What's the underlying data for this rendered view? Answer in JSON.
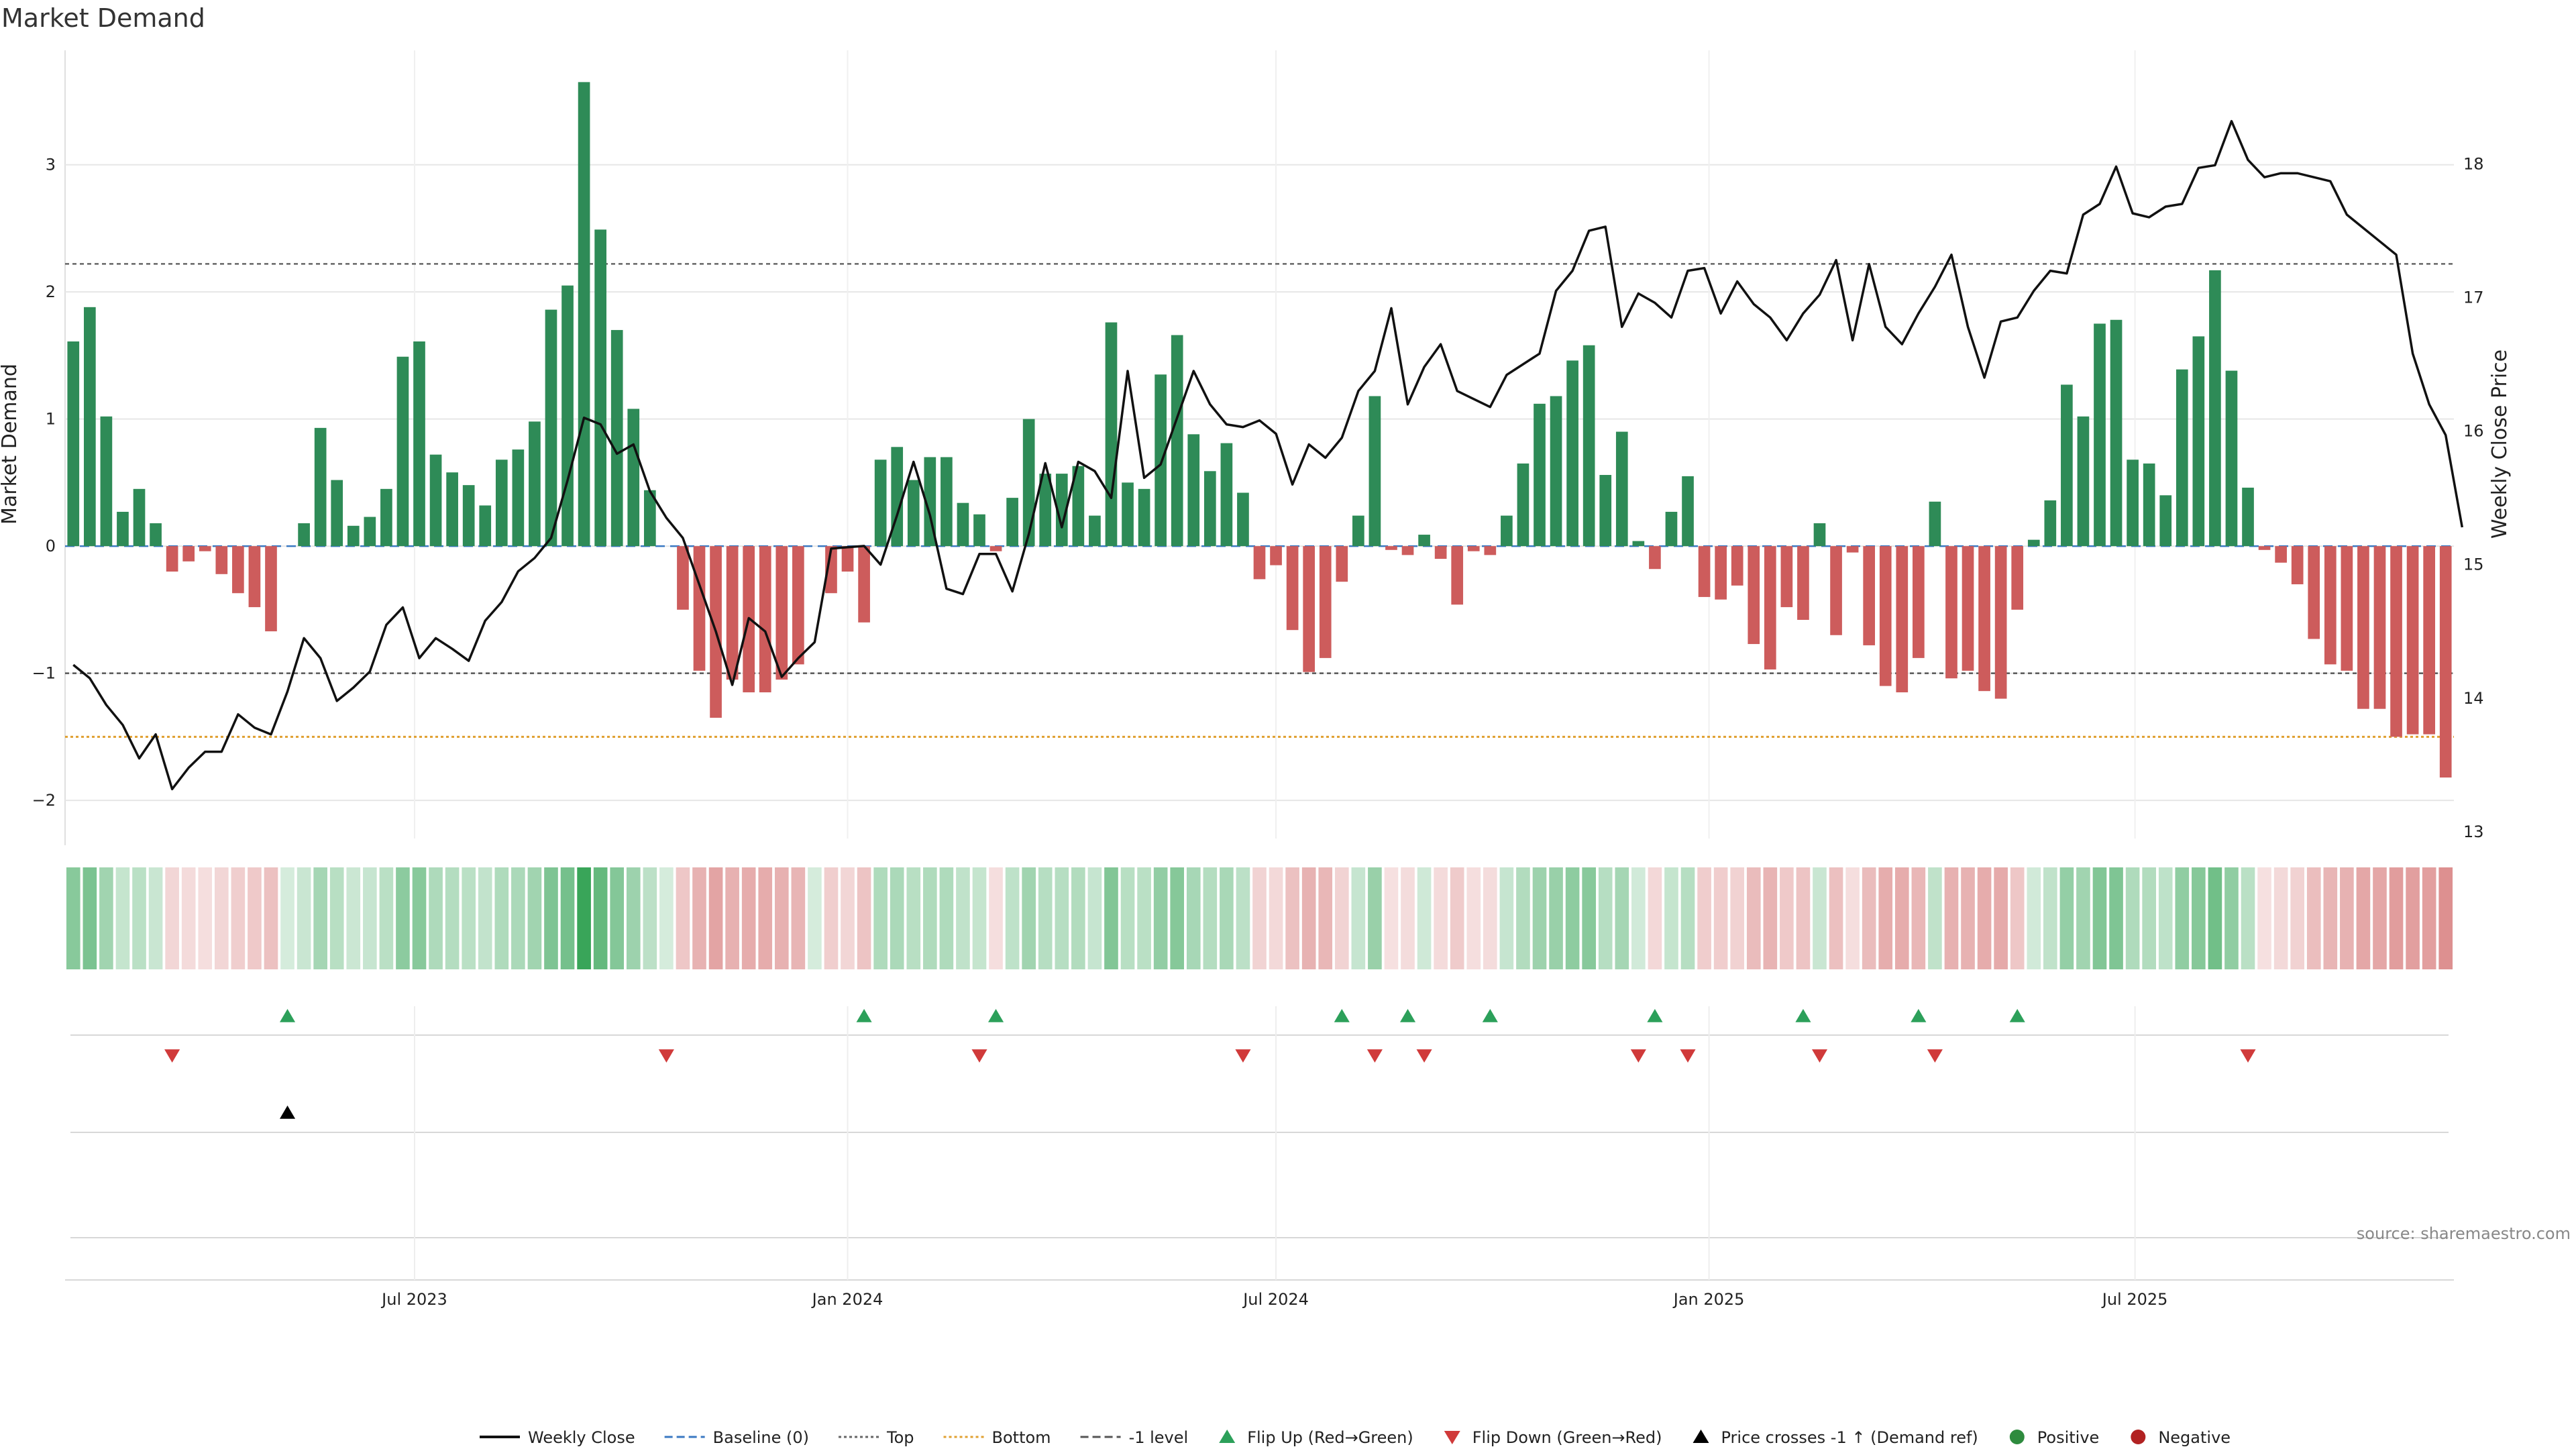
{
  "chart_data": {
    "type": "bar",
    "title": "Market Demand",
    "ylabel": "Market Demand",
    "y2label": "Weekly Close Price",
    "ylim": [
      -2.3,
      3.9
    ],
    "y2lim": [
      12.95,
      18.85
    ],
    "yticks": [
      -2,
      -1,
      0,
      1,
      2,
      3
    ],
    "y2ticks": [
      13,
      14,
      15,
      16,
      17,
      18
    ],
    "x_start": "2023-02-06",
    "x_interval_days": 7,
    "x_ticks": [
      {
        "label": "Jul 2023",
        "date": "2023-07-01"
      },
      {
        "label": "Jan 2024",
        "date": "2024-01-01"
      },
      {
        "label": "Jul 2024",
        "date": "2024-07-01"
      },
      {
        "label": "Jan 2025",
        "date": "2025-01-01"
      },
      {
        "label": "Jul 2025",
        "date": "2025-07-01"
      }
    ],
    "reference_lines": {
      "top": 2.22,
      "bottom": -1.5,
      "minus_one": -1,
      "baseline": 0
    },
    "series": [
      {
        "name": "Market Demand",
        "values": [
          1.61,
          1.88,
          1.02,
          0.27,
          0.45,
          0.18,
          -0.2,
          -0.12,
          -0.04,
          -0.22,
          -0.37,
          -0.48,
          -0.67,
          0.0,
          0.18,
          0.93,
          0.52,
          0.16,
          0.23,
          0.45,
          1.49,
          1.61,
          0.72,
          0.58,
          0.48,
          0.32,
          0.68,
          0.76,
          0.98,
          1.86,
          2.05,
          3.65,
          2.49,
          1.7,
          1.08,
          0.44,
          0.0,
          -0.5,
          -0.98,
          -1.35,
          -1.05,
          -1.15,
          -1.15,
          -1.05,
          -0.93,
          0.0,
          -0.37,
          -0.2,
          -0.6,
          0.68,
          0.78,
          0.52,
          0.7,
          0.7,
          0.34,
          0.25,
          -0.04,
          0.38,
          1.0,
          0.57,
          0.57,
          0.63,
          0.24,
          1.76,
          0.5,
          0.45,
          1.35,
          1.66,
          0.88,
          0.59,
          0.81,
          0.42,
          -0.26,
          -0.15,
          -0.66,
          -0.99,
          -0.88,
          -0.28,
          0.24,
          1.18,
          -0.03,
          -0.07,
          0.09,
          -0.1,
          -0.46,
          -0.04,
          -0.07,
          0.24,
          0.65,
          1.12,
          1.18,
          1.46,
          1.58,
          0.56,
          0.9,
          0.04,
          -0.18,
          0.27,
          0.55,
          -0.4,
          -0.42,
          -0.31,
          -0.77,
          -0.97,
          -0.48,
          -0.58,
          0.18,
          -0.7,
          -0.05,
          -0.78,
          -1.1,
          -1.15,
          -0.88,
          0.35,
          -1.04,
          -0.98,
          -1.14,
          -1.2,
          -0.5,
          0.05,
          0.36,
          1.27,
          1.02,
          1.75,
          1.78,
          0.68,
          0.65,
          0.4,
          1.39,
          1.65,
          2.17,
          1.38,
          0.46,
          -0.03,
          -0.13,
          -0.3,
          -0.73,
          -0.93,
          -0.98,
          -1.28,
          -1.28,
          -1.5,
          -1.48,
          -1.48,
          -1.82
        ]
      },
      {
        "name": "Weekly Close",
        "values": [
          14.25,
          14.15,
          13.95,
          13.8,
          13.55,
          13.73,
          13.32,
          13.48,
          13.6,
          13.6,
          13.88,
          13.78,
          13.73,
          14.05,
          14.45,
          14.3,
          13.98,
          14.08,
          14.2,
          14.55,
          14.68,
          14.3,
          14.45,
          14.37,
          14.28,
          14.58,
          14.72,
          14.95,
          15.05,
          15.2,
          15.63,
          16.1,
          16.05,
          15.83,
          15.9,
          15.55,
          15.35,
          15.2,
          14.85,
          14.5,
          14.1,
          14.6,
          14.5,
          14.16,
          14.3,
          14.42,
          15.12,
          15.13,
          15.14,
          15.0,
          15.37,
          15.77,
          15.37,
          14.82,
          14.78,
          15.08,
          15.08,
          14.8,
          15.23,
          15.76,
          15.28,
          15.77,
          15.7,
          15.5,
          16.45,
          15.65,
          15.75,
          16.1,
          16.45,
          16.2,
          16.05,
          16.03,
          16.08,
          15.98,
          15.6,
          15.9,
          15.8,
          15.95,
          16.3,
          16.45,
          16.92,
          16.2,
          16.48,
          16.65,
          16.3,
          16.24,
          16.18,
          16.42,
          16.5,
          16.58,
          17.05,
          17.2,
          17.5,
          17.53,
          16.78,
          17.03,
          16.96,
          16.85,
          17.2,
          17.22,
          16.88,
          17.12,
          16.95,
          16.85,
          16.68,
          16.88,
          17.02,
          17.28,
          16.68,
          17.25,
          16.78,
          16.65,
          16.88,
          17.08,
          17.32,
          16.78,
          16.4,
          16.82,
          16.85,
          17.05,
          17.2,
          17.18,
          17.62,
          17.7,
          17.98,
          17.63,
          17.6,
          17.68,
          17.7,
          17.97,
          17.99,
          18.32,
          18.03,
          17.9,
          17.93,
          17.93,
          17.9,
          17.87,
          17.62,
          17.52,
          17.42,
          17.32,
          16.58,
          16.2,
          15.97,
          15.28
        ]
      }
    ],
    "flip_up_indices": [
      13,
      48,
      56,
      77,
      81,
      86,
      96,
      105,
      112,
      118
    ],
    "flip_down_indices": [
      6,
      36,
      55,
      71,
      79,
      82,
      95,
      98,
      106,
      113,
      132
    ],
    "price_cross_indices": [
      13
    ],
    "legend": {
      "position": "bottom",
      "entries": [
        {
          "label": "Weekly Close",
          "kind": "line",
          "color": "#111111"
        },
        {
          "label": "Baseline (0)",
          "kind": "dash",
          "color": "#3a78c2"
        },
        {
          "label": "Top",
          "kind": "dot",
          "color": "#666666"
        },
        {
          "label": "Bottom",
          "kind": "dot",
          "color": "#e0a030"
        },
        {
          "label": "-1 level",
          "kind": "dash",
          "color": "#555555"
        },
        {
          "label": "Flip Up (Red→Green)",
          "kind": "tri-up",
          "color": "#2ca05a"
        },
        {
          "label": "Flip Down (Green→Red)",
          "kind": "tri-down",
          "color": "#d03a3a"
        },
        {
          "label": "Price crosses -1 ↑ (Demand ref)",
          "kind": "tri-up",
          "color": "#000000"
        },
        {
          "label": "Positive",
          "kind": "dot-marker",
          "color": "#2e8b3e"
        },
        {
          "label": "Negative",
          "kind": "dot-marker",
          "color": "#b22222"
        }
      ]
    },
    "colors": {
      "positive": "#2e8b57",
      "negative": "#cd5c5c",
      "price": "#111111",
      "grid": "#e6e6e6",
      "flip_up": "#2ca05a",
      "flip_down": "#d03a3a"
    },
    "source": "source: sharemaestro.com"
  }
}
